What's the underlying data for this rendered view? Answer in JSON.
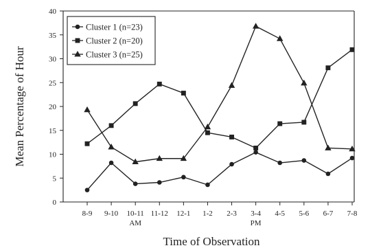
{
  "chart_data": {
    "type": "line",
    "title": "",
    "xlabel": "Time of Observation",
    "ylabel": "Mean Percentage of Hour",
    "ylim": [
      0,
      40
    ],
    "yticks": [
      0,
      5,
      10,
      15,
      20,
      25,
      30,
      35,
      40
    ],
    "categories": [
      "8-9",
      "9-10",
      "10-11",
      "11-12",
      "12-1",
      "1-2",
      "2-3",
      "3-4",
      "4-5",
      "5-6",
      "6-7",
      "7-8"
    ],
    "period_labels": [
      {
        "label": "AM",
        "category": "10-11"
      },
      {
        "label": "PM",
        "category": "3-4"
      }
    ],
    "legend_position": "top-left",
    "grid": false,
    "series": [
      {
        "name": "Cluster 1 (n=23)",
        "marker": "circle",
        "values": [
          2.5,
          8.2,
          3.8,
          4.1,
          5.2,
          3.6,
          7.9,
          10.4,
          8.2,
          8.7,
          5.9,
          9.2
        ]
      },
      {
        "name": "Cluster 2 (n=20)",
        "marker": "square",
        "values": [
          12.2,
          16.0,
          20.6,
          24.7,
          22.8,
          14.5,
          13.6,
          11.3,
          16.4,
          16.7,
          28.1,
          31.9
        ]
      },
      {
        "name": "Cluster 3 (n=25)",
        "marker": "triangle",
        "values": [
          19.3,
          11.5,
          8.4,
          9.1,
          9.1,
          15.7,
          24.4,
          36.8,
          34.2,
          24.9,
          11.3,
          11.1
        ]
      }
    ]
  }
}
